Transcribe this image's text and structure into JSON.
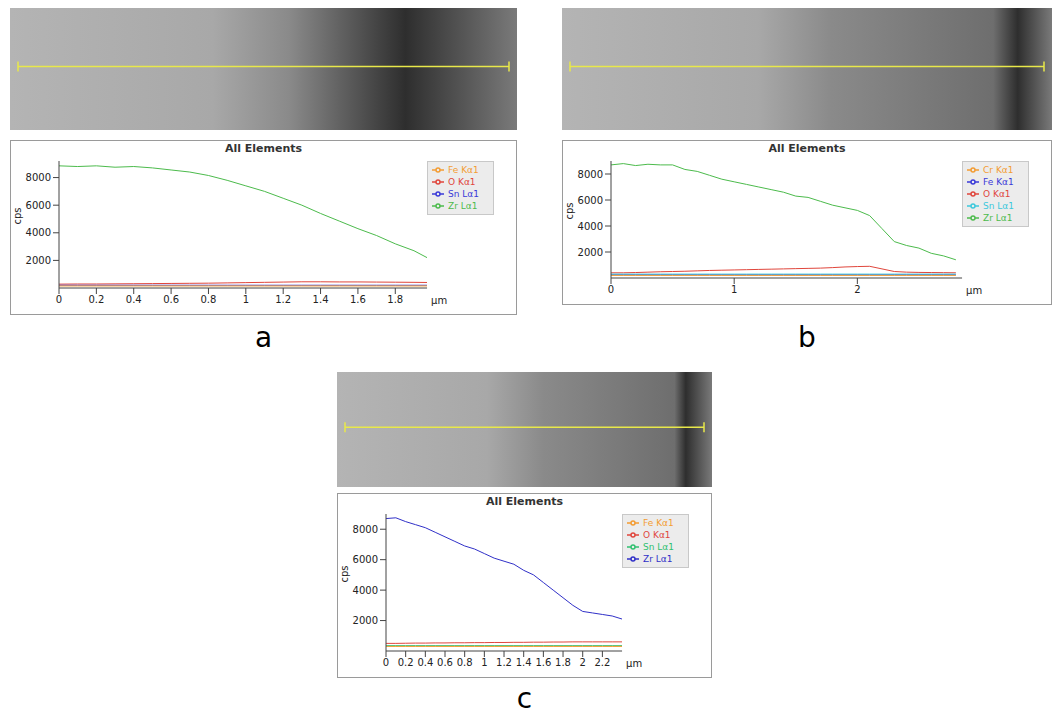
{
  "chart_data": [
    {
      "type": "line",
      "panel": "a",
      "title": "All Elements",
      "x_label": "µm",
      "y_label": "cps",
      "x": [
        0,
        0.1,
        0.2,
        0.3,
        0.4,
        0.5,
        0.6,
        0.7,
        0.8,
        0.9,
        1.0,
        1.1,
        1.2,
        1.3,
        1.4,
        1.5,
        1.6,
        1.7,
        1.8,
        1.9,
        1.97
      ],
      "xlim": [
        0,
        1.97
      ],
      "xticks": [
        0,
        0.2,
        0.4,
        0.6,
        0.8,
        1,
        1.2,
        1.4,
        1.6,
        1.8
      ],
      "ylim": [
        0,
        9200
      ],
      "yticks": [
        2000,
        4000,
        6000,
        8000
      ],
      "legend": "right",
      "series": [
        {
          "name": "O Kα1",
          "color": "#e0463c",
          "values": [
            280,
            290,
            290,
            300,
            310,
            320,
            330,
            340,
            350,
            370,
            390,
            410,
            430,
            450,
            450,
            440,
            440,
            430,
            420,
            410,
            400
          ]
        },
        {
          "name": "Zr Lα1",
          "color": "#4cbb4c",
          "values": [
            8850,
            8800,
            8850,
            8750,
            8800,
            8700,
            8550,
            8400,
            8150,
            7800,
            7400,
            7000,
            6500,
            6000,
            5400,
            4850,
            4300,
            3800,
            3200,
            2700,
            2200
          ]
        },
        {
          "name": "Sn Lα1",
          "color": "#3a3ad8",
          "values": [
            200,
            200,
            200,
            200,
            200,
            200,
            200,
            200,
            200,
            200,
            200,
            200,
            200,
            200,
            200,
            200,
            200,
            200,
            200,
            200,
            200
          ]
        },
        {
          "name": "Fe Kα1",
          "color": "#f39c32",
          "values": [
            150,
            150,
            150,
            150,
            150,
            150,
            150,
            150,
            150,
            150,
            150,
            150,
            150,
            150,
            150,
            150,
            150,
            150,
            150,
            150,
            150
          ]
        }
      ]
    },
    {
      "type": "line",
      "panel": "b",
      "title": "All Elements",
      "x_label": "µm",
      "y_label": "cps",
      "x": [
        0,
        0.1,
        0.2,
        0.3,
        0.4,
        0.5,
        0.6,
        0.7,
        0.8,
        0.9,
        1.0,
        1.1,
        1.2,
        1.3,
        1.4,
        1.5,
        1.6,
        1.7,
        1.8,
        1.9,
        2.0,
        2.1,
        2.2,
        2.3,
        2.4,
        2.5,
        2.6,
        2.7,
        2.8
      ],
      "xlim": [
        0,
        2.85
      ],
      "xticks": [
        0,
        1,
        2
      ],
      "ylim": [
        0,
        9000
      ],
      "yticks": [
        2000,
        4000,
        6000,
        8000
      ],
      "legend": "right",
      "series": [
        {
          "name": "O Kα1",
          "color": "#e0463c",
          "values": [
            400,
            400,
            420,
            450,
            480,
            500,
            520,
            550,
            580,
            600,
            620,
            640,
            660,
            680,
            700,
            720,
            740,
            760,
            800,
            850,
            880,
            900,
            700,
            500,
            450,
            430,
            420,
            410,
            400
          ]
        },
        {
          "name": "Fe Kα1",
          "color": "#3a3ad8",
          "values": [
            250,
            250,
            250,
            250,
            250,
            250,
            250,
            250,
            250,
            250,
            250,
            250,
            250,
            250,
            250,
            250,
            250,
            250,
            250,
            250,
            250,
            250,
            250,
            250,
            250,
            250,
            250,
            250,
            250
          ]
        },
        {
          "name": "Zr Lα1",
          "color": "#4cbb4c",
          "values": [
            8700,
            8800,
            8650,
            8750,
            8700,
            8700,
            8350,
            8200,
            7900,
            7600,
            7400,
            7200,
            7000,
            6800,
            6600,
            6300,
            6200,
            5900,
            5600,
            5400,
            5200,
            4800,
            3800,
            2800,
            2500,
            2300,
            1900,
            1700,
            1400
          ]
        },
        {
          "name": "Sn Lα1",
          "color": "#3cc8dc",
          "values": [
            300,
            300,
            300,
            300,
            300,
            300,
            300,
            300,
            300,
            300,
            300,
            300,
            300,
            300,
            300,
            300,
            300,
            300,
            300,
            300,
            300,
            300,
            300,
            300,
            300,
            300,
            300,
            300,
            300
          ]
        },
        {
          "name": "Cr Kα1",
          "color": "#f39c32",
          "values": [
            200,
            200,
            200,
            200,
            200,
            200,
            200,
            200,
            200,
            200,
            200,
            200,
            200,
            200,
            200,
            200,
            200,
            200,
            200,
            200,
            200,
            200,
            200,
            200,
            200,
            200,
            200,
            200,
            200
          ]
        }
      ]
    },
    {
      "type": "line",
      "panel": "c",
      "title": "All Elements",
      "x_label": "µm",
      "y_label": "cps",
      "x": [
        0,
        0.1,
        0.2,
        0.3,
        0.4,
        0.5,
        0.6,
        0.7,
        0.8,
        0.9,
        1.0,
        1.1,
        1.2,
        1.3,
        1.4,
        1.5,
        1.6,
        1.7,
        1.8,
        1.9,
        2.0,
        2.1,
        2.2,
        2.3,
        2.4
      ],
      "xlim": [
        0,
        2.4
      ],
      "xticks": [
        0,
        0.2,
        0.4,
        0.6,
        0.8,
        1,
        1.2,
        1.4,
        1.6,
        1.8,
        2,
        2.2
      ],
      "ylim": [
        0,
        9000
      ],
      "yticks": [
        2000,
        4000,
        6000,
        8000
      ],
      "legend": "right",
      "series": [
        {
          "name": "O Kα1",
          "color": "#e0463c",
          "values": [
            500,
            500,
            510,
            520,
            520,
            530,
            530,
            540,
            540,
            550,
            550,
            560,
            560,
            570,
            570,
            580,
            580,
            590,
            590,
            600,
            600,
            600,
            600,
            600,
            600
          ]
        },
        {
          "name": "Zr Lα1",
          "color": "#3030c8",
          "values": [
            8700,
            8750,
            8500,
            8300,
            8100,
            7800,
            7500,
            7200,
            6900,
            6700,
            6400,
            6100,
            5900,
            5700,
            5300,
            5000,
            4500,
            4000,
            3500,
            3000,
            2600,
            2500,
            2400,
            2300,
            2100
          ]
        },
        {
          "name": "Sn Lα1",
          "color": "#30c070",
          "values": [
            350,
            350,
            350,
            350,
            350,
            350,
            350,
            350,
            350,
            350,
            350,
            350,
            350,
            350,
            350,
            350,
            350,
            350,
            350,
            350,
            350,
            350,
            350,
            350,
            350
          ]
        },
        {
          "name": "Fe Kα1",
          "color": "#f39c32",
          "values": [
            300,
            300,
            300,
            300,
            300,
            300,
            300,
            300,
            300,
            300,
            300,
            300,
            300,
            300,
            300,
            300,
            300,
            300,
            300,
            300,
            300,
            300,
            300,
            300,
            300
          ]
        }
      ]
    }
  ]
}
